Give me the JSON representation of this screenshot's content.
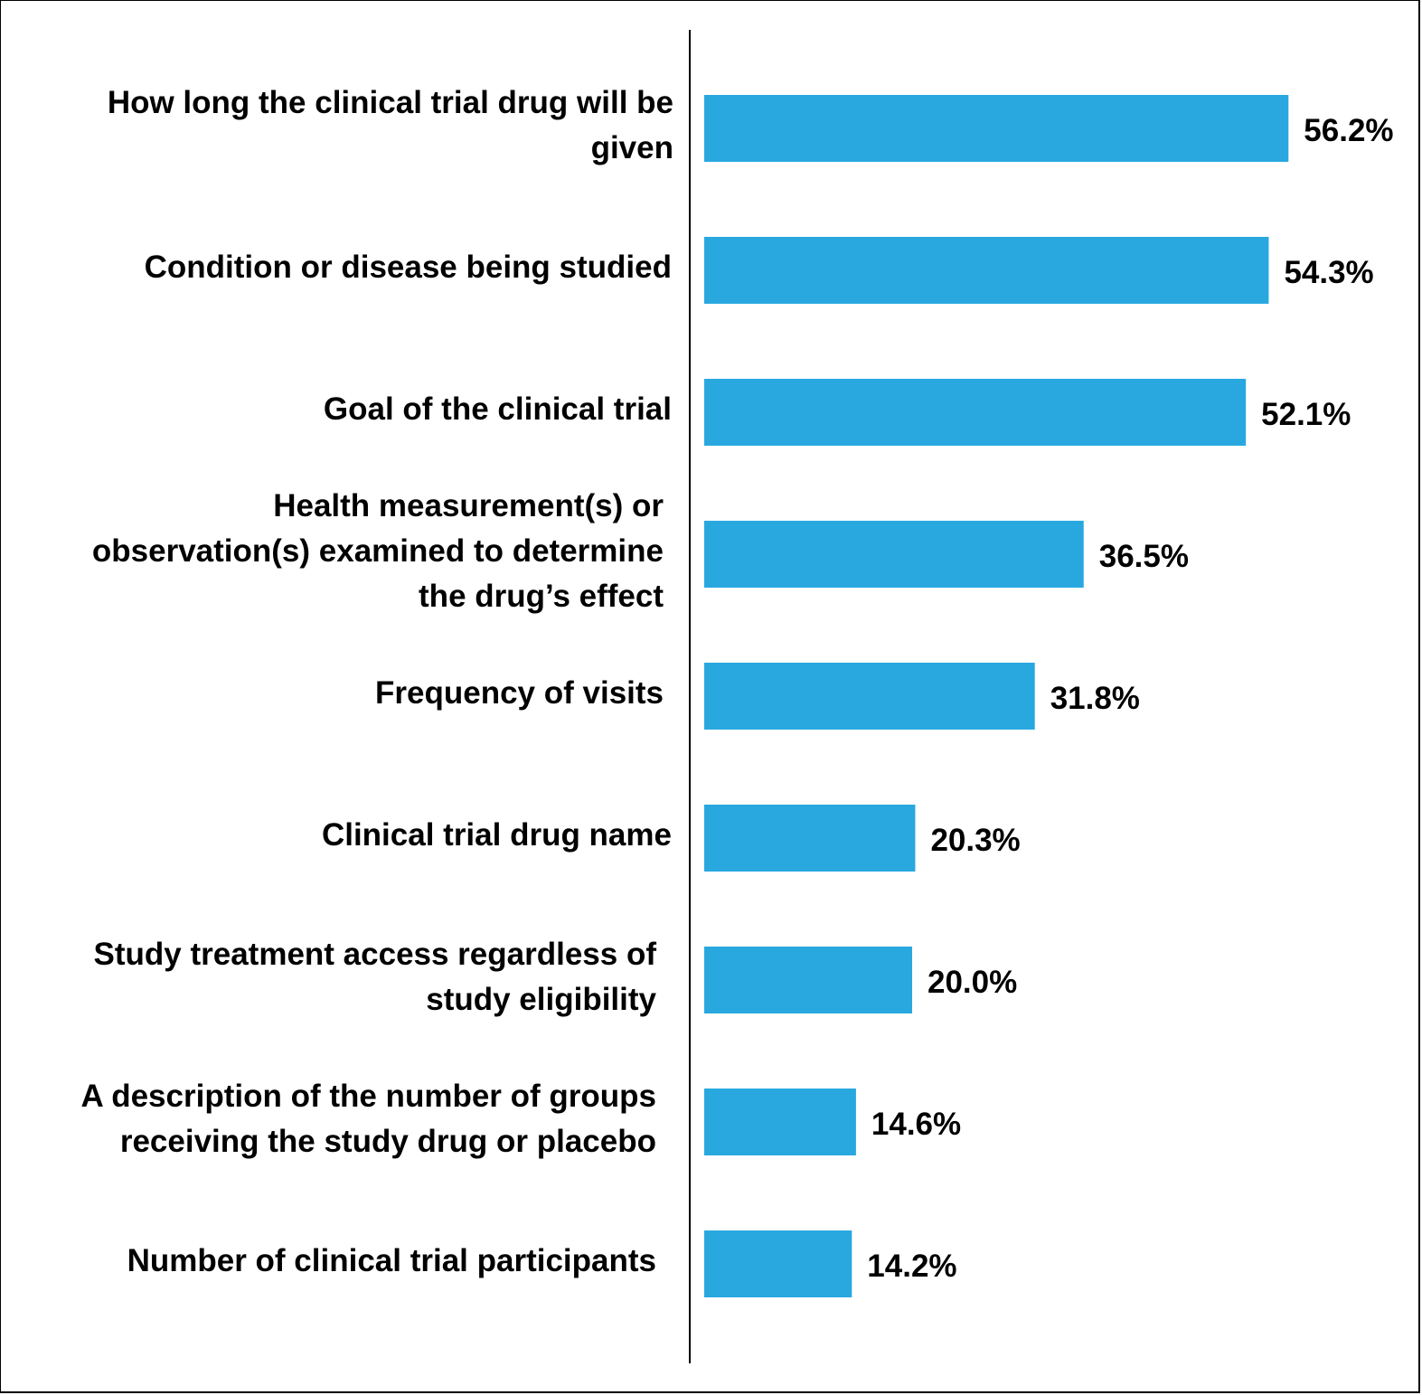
{
  "chart_data": {
    "type": "bar",
    "orientation": "horizontal",
    "categories": [
      "How long the clinical trial drug will be given",
      "Condition or disease being studied",
      "Goal of the clinical trial",
      "Health measurement(s) or observation(s) examined to determine the drug’s effect",
      "Frequency of visits",
      "Clinical trial drug name",
      "Study treatment access regardless of study eligibility",
      "A description of the number of groups receiving the study drug or placebo",
      "Number of clinical trial participants"
    ],
    "category_lines": [
      [
        "How long the clinical trial drug will be",
        "given"
      ],
      [
        "Condition or disease being studied"
      ],
      [
        "Goal of the clinical trial"
      ],
      [
        "Health measurement(s) or",
        "observation(s) examined to determine",
        "the drug’s effect"
      ],
      [
        "Frequency of visits"
      ],
      [
        "Clinical trial drug name"
      ],
      [
        "Study treatment access regardless of",
        "study eligibility"
      ],
      [
        "A description of the number of groups",
        "receiving the study drug or placebo"
      ],
      [
        "Number of clinical trial participants"
      ]
    ],
    "values": [
      56.2,
      54.3,
      52.1,
      36.5,
      31.8,
      20.3,
      20.0,
      14.6,
      14.2
    ],
    "value_labels": [
      "56.2%",
      "54.3%",
      "52.1%",
      "36.5%",
      "31.8%",
      "20.3%",
      "20.0%",
      "14.6%",
      "14.2%"
    ],
    "unit": "%",
    "title": "",
    "xlabel": "",
    "ylabel": "",
    "grid": false,
    "legend": false,
    "bar_color": "#29A8E0"
  }
}
